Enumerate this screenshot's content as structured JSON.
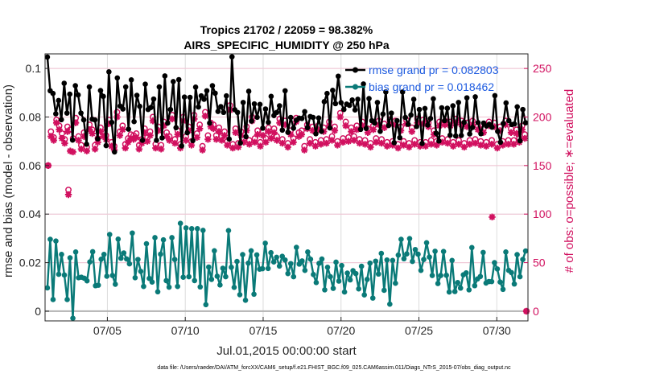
{
  "chart_data": {
    "type": "line",
    "title_line1": "Tropics 21702 / 22059 = 98.382%",
    "title_line2": "AIRS_SPECIFIC_HUMIDITY @ 250 hPa",
    "xlabel": "Jul.01,2015 00:00:00 start",
    "ylabel_left": "rmse and bias (model - observation)",
    "ylabel_right": "# of obs: o=possible; ∗=evaluated",
    "xlim": [
      1.0,
      32.0
    ],
    "ylim_left": [
      -0.004,
      0.106
    ],
    "ylim_right": [
      -10,
      265
    ],
    "x_ticks": [
      {
        "value": 5,
        "label": "07/05"
      },
      {
        "value": 10,
        "label": "07/10"
      },
      {
        "value": 15,
        "label": "07/15"
      },
      {
        "value": 20,
        "label": "07/20"
      },
      {
        "value": 25,
        "label": "07/25"
      },
      {
        "value": 30,
        "label": "07/30"
      }
    ],
    "y_ticks_left": [
      {
        "value": 0,
        "label": "0"
      },
      {
        "value": 0.02,
        "label": "0.02"
      },
      {
        "value": 0.04,
        "label": "0.04"
      },
      {
        "value": 0.06,
        "label": "0.06"
      },
      {
        "value": 0.08,
        "label": "0.08"
      },
      {
        "value": 0.1,
        "label": "0.1"
      }
    ],
    "y_ticks_right": [
      {
        "value": 0,
        "label": "0"
      },
      {
        "value": 50,
        "label": "50"
      },
      {
        "value": 100,
        "label": "100"
      },
      {
        "value": 150,
        "label": "150"
      },
      {
        "value": 200,
        "label": "200"
      },
      {
        "value": 250,
        "label": "250"
      }
    ],
    "grid": true,
    "legend_position": "top-right",
    "series": [
      {
        "name": "rmse grand pr = 0.082803",
        "axis": "left",
        "color": "#000000",
        "values": [
          0.1047,
          0.0908,
          0.0897,
          0.0813,
          0.0868,
          0.0789,
          0.0939,
          0.0816,
          0.0894,
          0.0705,
          0.0929,
          0.0891,
          0.0816,
          0.0788,
          0.0688,
          0.0924,
          0.0791,
          0.0788,
          0.071,
          0.0909,
          0.0885,
          0.0682,
          0.0986,
          0.0778,
          0.0656,
          0.0961,
          0.0845,
          0.0833,
          0.0924,
          0.075,
          0.0953,
          0.0781,
          0.0889,
          0.0844,
          0.0704,
          0.0935,
          0.0831,
          0.0839,
          0.0874,
          0.0704,
          0.0924,
          0.0714,
          0.0969,
          0.0775,
          0.0831,
          0.0946,
          0.0756,
          0.0954,
          0.0681,
          0.0882,
          0.0735,
          0.0881,
          0.0703,
          0.0923,
          0.0841,
          0.0887,
          0.0873,
          0.0908,
          0.0775,
          0.0929,
          0.0898,
          0.0823,
          0.0843,
          0.0819,
          0.0887,
          0.0709,
          0.1048,
          0.083,
          0.0819,
          0.0693,
          0.086,
          0.0719,
          0.0906,
          0.0783,
          0.0854,
          0.0799,
          0.0852,
          0.0754,
          0.0833,
          0.0778,
          0.0885,
          0.0806,
          0.0819,
          0.0846,
          0.0746,
          0.0908,
          0.0737,
          0.0798,
          0.0754,
          0.0787,
          0.0795,
          0.0794,
          0.0822,
          0.0756,
          0.0802,
          0.0798,
          0.0731,
          0.0796,
          0.0741,
          0.0863,
          0.0897,
          0.0755,
          0.091,
          0.0855,
          0.0968,
          0.0859,
          0.0831,
          0.0853,
          0.0848,
          0.087,
          0.0829,
          0.0873,
          0.0749,
          0.0936,
          0.0753,
          0.0876,
          0.0785,
          0.0775,
          0.086,
          0.0741,
          0.0812,
          0.0903,
          0.0765,
          0.0816,
          0.0694,
          0.0785,
          0.0715,
          0.0903,
          0.0798,
          0.077,
          0.0808,
          0.0873,
          0.0761,
          0.0831,
          0.0691,
          0.0835,
          0.0767,
          0.0794,
          0.0875,
          0.0733,
          0.0701,
          0.0838,
          0.0785,
          0.0836,
          0.0725,
          0.0846,
          0.0722,
          0.086,
          0.0724,
          0.0778,
          0.0879,
          0.073,
          0.0757,
          0.0883,
          0.0777,
          0.0731,
          0.0775,
          0.0763,
          0.077,
          0.0758,
          0.0888,
          0.0741,
          0.0696,
          0.0773,
          0.0858,
          0.0785,
          0.0769,
          0.0771,
          0.0842,
          0.0702,
          0.0831,
          0.0776
        ]
      },
      {
        "name": "bias grand pr = 0.018462",
        "axis": "left",
        "color": "#0a7a78",
        "values": [
          0.0096,
          0.0296,
          0.0048,
          0.0289,
          0.0152,
          0.0234,
          0.0149,
          0.0048,
          0.022,
          -0.0029,
          0.0244,
          0.0138,
          0.014,
          0.0136,
          0.0125,
          0.0203,
          0.0245,
          0.0105,
          0.0107,
          0.0214,
          0.0234,
          0.0144,
          0.0316,
          0.0147,
          0.0111,
          0.0297,
          0.0218,
          0.024,
          0.0215,
          0.0195,
          0.0322,
          0.0138,
          0.0213,
          0.0164,
          0.0102,
          0.0278,
          0.0135,
          0.012,
          0.0303,
          0.008,
          0.0235,
          0.0294,
          0.0126,
          0.0099,
          0.0303,
          0.0213,
          0.0102,
          0.0362,
          0.014,
          0.0343,
          0.0142,
          0.034,
          0.0126,
          0.034,
          0.01,
          0.0333,
          0.0027,
          0.0182,
          0.0131,
          0.0249,
          0.0144,
          0.0108,
          0.0177,
          0.0142,
          0.0332,
          0.0181,
          0.0098,
          0.0205,
          0.0068,
          0.0233,
          0.0045,
          0.0198,
          0.0249,
          0.007,
          0.0232,
          0.0173,
          0.0175,
          0.028,
          0.0176,
          0.0241,
          0.0203,
          0.0222,
          0.0186,
          0.0226,
          0.0211,
          0.0155,
          0.0196,
          0.0142,
          0.0263,
          0.0194,
          0.0207,
          0.0168,
          0.0244,
          0.0214,
          0.0151,
          0.0118,
          0.0197,
          0.0215,
          0.0088,
          0.0181,
          0.0142,
          0.0094,
          0.0202,
          0.0124,
          0.0188,
          0.0079,
          0.0157,
          0.0129,
          0.0167,
          0.0155,
          0.0092,
          0.0185,
          0.0067,
          0.0131,
          0.0198,
          0.0054,
          0.0206,
          0.0153,
          0.0238,
          0.0086,
          0.0211,
          0.0029,
          0.0209,
          0.0115,
          0.0231,
          0.0296,
          0.0216,
          0.0236,
          0.0299,
          0.0205,
          0.0254,
          0.0235,
          0.0168,
          0.0213,
          0.0282,
          0.0223,
          0.0147,
          0.0247,
          0.0114,
          0.0147,
          0.0246,
          0.0148,
          0.0079,
          0.0209,
          0.0081,
          0.0118,
          0.0095,
          0.015,
          0.0158,
          0.0088,
          0.0262,
          0.0105,
          0.0133,
          0.0143,
          0.0242,
          0.0116,
          0.0122,
          0.0122,
          0.02,
          0.0174,
          0.012,
          0.009,
          0.0244,
          0.0168,
          0.0159,
          0.0112,
          0.0233,
          0.0142,
          0.0213,
          0.0248
        ]
      },
      {
        "name": "possible",
        "axis": "right",
        "color": "#d1105f",
        "marker": "o",
        "values": [
          150,
          185,
          179,
          197,
          191,
          183,
          177,
          190,
          187,
          178,
          199,
          180,
          171,
          184,
          169,
          192,
          187,
          171,
          178,
          189,
          184,
          181,
          197,
          174,
          170,
          205,
          185,
          191,
          172,
          178,
          182,
          181,
          183,
          171,
          177,
          188,
          179,
          185,
          200,
          172,
          190,
          171,
          195,
          184,
          180,
          202,
          177,
          186,
          172,
          200,
          180,
          190,
          175,
          202,
          183,
          192,
          170,
          205,
          181,
          194,
          192,
          181,
          189,
          180,
          185,
          175,
          212,
          172,
          188,
          173,
          185,
          178,
          190,
          176,
          200,
          178,
          186,
          174,
          185,
          178,
          189,
          182,
          188,
          180,
          198,
          177,
          196,
          173,
          186,
          178,
          199,
          184,
          186,
          170,
          192,
          177,
          190,
          174,
          191,
          176,
          189,
          177,
          195,
          180,
          190,
          175,
          204,
          178,
          195,
          179,
          189,
          180,
          191,
          177,
          195,
          176,
          188,
          173,
          191,
          178,
          196,
          177,
          193,
          174,
          197,
          175,
          196,
          172,
          190,
          175,
          197,
          173,
          189,
          176,
          198,
          174,
          197,
          174,
          194,
          176,
          186,
          175,
          195,
          178,
          196,
          177,
          195,
          174,
          198,
          176,
          196,
          173,
          194,
          176,
          196,
          177,
          191,
          175,
          188,
          174,
          195,
          176,
          194,
          172,
          190,
          175,
          196,
          176,
          188,
          176,
          187,
          178,
          191,
          182
        ]
      },
      {
        "name": "evaluated",
        "axis": "right",
        "color": "#d1105f",
        "marker": "*",
        "values": [
          150,
          180,
          176,
          194,
          187,
          178,
          173,
          185,
          165,
          164,
          194,
          176,
          167,
          180,
          165,
          187,
          183,
          167,
          174,
          185,
          180,
          177,
          193,
          170,
          166,
          200,
          181,
          187,
          168,
          174,
          178,
          177,
          179,
          167,
          173,
          184,
          175,
          181,
          196,
          168,
          186,
          167,
          191,
          180,
          176,
          198,
          173,
          182,
          168,
          196,
          176,
          186,
          171,
          198,
          179,
          188,
          166,
          201,
          177,
          190,
          188,
          177,
          185,
          176,
          181,
          171,
          207,
          168,
          184,
          169,
          181,
          174,
          186,
          172,
          196,
          174,
          182,
          170,
          181,
          174,
          185,
          178,
          184,
          176,
          194,
          173,
          192,
          169,
          182,
          174,
          195,
          180,
          182,
          166,
          188,
          173,
          186,
          170,
          187,
          172,
          185,
          173,
          191,
          176,
          186,
          171,
          200,
          174,
          191,
          175,
          185,
          176,
          187,
          173,
          191,
          172,
          184,
          169,
          187,
          174,
          192,
          173,
          189,
          170,
          193,
          171,
          192,
          168,
          186,
          171,
          193,
          169,
          185,
          172,
          194,
          170,
          193,
          170,
          190,
          172,
          182,
          171,
          191,
          174,
          192,
          173,
          191,
          170,
          194,
          172,
          192,
          169,
          190,
          172,
          192,
          173,
          187,
          171,
          184,
          170,
          191,
          172,
          190,
          168,
          186,
          171,
          192,
          172,
          184,
          172,
          183,
          174,
          187,
          178
        ]
      }
    ],
    "annotations": [
      {
        "x": 2.5,
        "series": "possible",
        "value": 125
      },
      {
        "x": 2.5,
        "series": "evaluated",
        "value": 120
      },
      {
        "x": 29.7,
        "series": "evaluated",
        "value": 97
      },
      {
        "x": 31.9,
        "series": "possible",
        "value": 0
      },
      {
        "x": 31.9,
        "series": "evaluated",
        "value": 0
      }
    ]
  },
  "footer_text": "data file: /Users/raeder/DAI/ATM_forcXX/CAM6_setup/f.e21.FHIST_BGC.f09_025.CAM6assim.011/Diags_NTrS_2015-07/obs_diag_output.nc"
}
